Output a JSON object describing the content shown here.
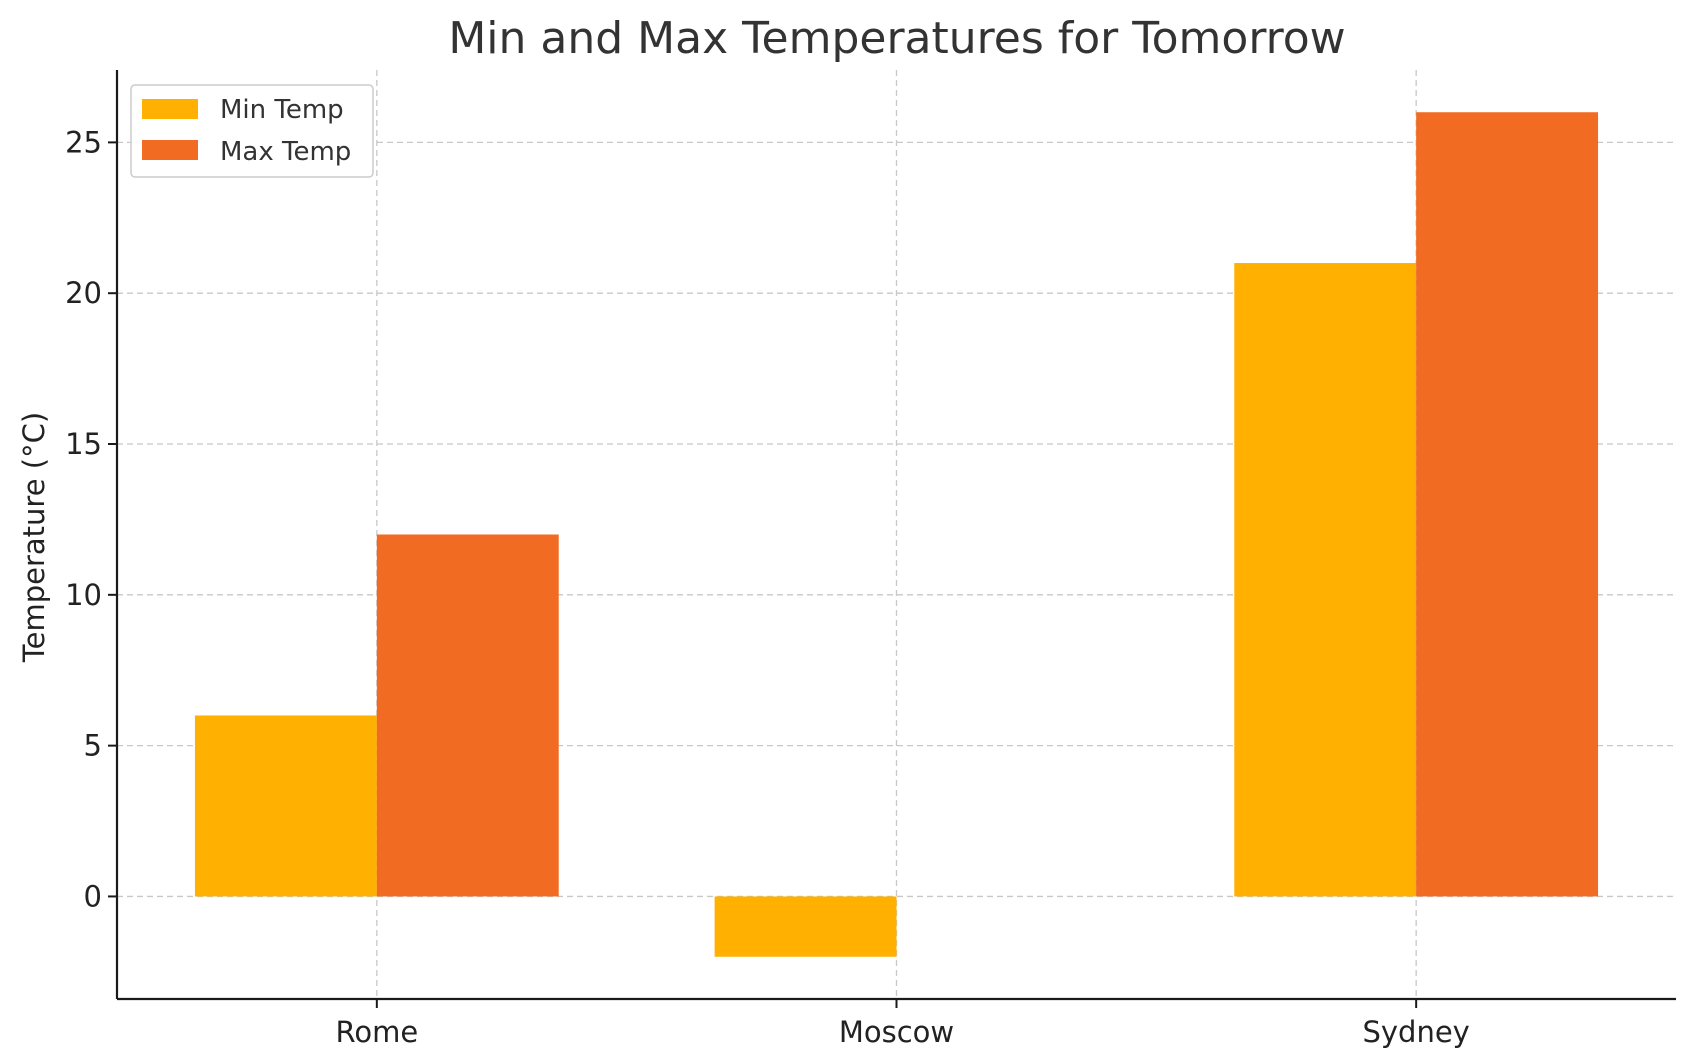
{
  "chart_data": {
    "type": "bar",
    "title": "Min and Max Temperatures for Tomorrow",
    "xlabel": "",
    "ylabel": "Temperature (°C)",
    "categories": [
      "Rome",
      "Moscow",
      "Sydney"
    ],
    "series": [
      {
        "name": "Min Temp",
        "values": [
          6,
          -2,
          21
        ],
        "color": "#FFB000"
      },
      {
        "name": "Max Temp",
        "values": [
          12,
          0,
          26
        ],
        "color": "#F26B22"
      }
    ],
    "ylim": [
      -3.4,
      27.4
    ],
    "yticks": [
      0,
      5,
      10,
      15,
      20,
      25
    ],
    "grid": true,
    "legend": "top-left"
  }
}
